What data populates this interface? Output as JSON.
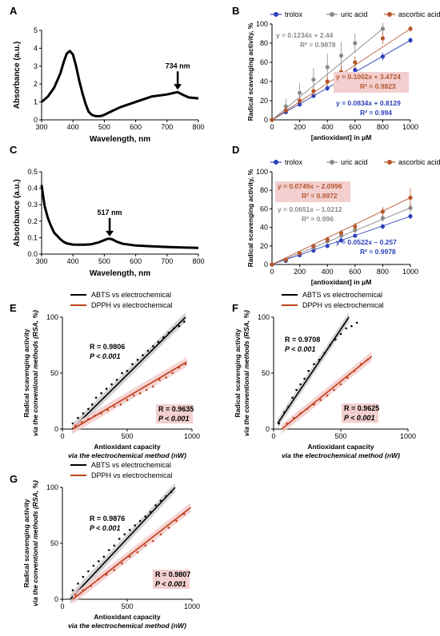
{
  "colors": {
    "trolox": "#2a3fb8",
    "uric_acid": "#8a8a8a",
    "ascorbic_acid": "#b5562d",
    "abts_line": "#000000",
    "dpph_line": "#c2401a",
    "dpph_label_bg": "#f3cfcf"
  },
  "chart_data": [
    {
      "panel": "A",
      "type": "line",
      "xlabel": "Wavelength, nm",
      "ylabel": "Absorbance (a.u.)",
      "xlim": [
        300,
        800
      ],
      "ylim": [
        0,
        5
      ],
      "xticks": [
        "300",
        "400",
        "500",
        "600",
        "700",
        "800"
      ],
      "yticks": [
        "0",
        "1",
        "2",
        "3",
        "4",
        "5"
      ],
      "annotation": "734 nm",
      "annotation_x": 734,
      "x": [
        300,
        320,
        340,
        360,
        370,
        380,
        390,
        400,
        410,
        420,
        430,
        440,
        450,
        460,
        470,
        480,
        490,
        500,
        520,
        550,
        600,
        650,
        700,
        720,
        734,
        750,
        770,
        800
      ],
      "y": [
        1.0,
        1.3,
        1.8,
        2.6,
        3.2,
        3.7,
        3.85,
        3.65,
        3.0,
        2.2,
        1.5,
        0.9,
        0.45,
        0.28,
        0.22,
        0.2,
        0.22,
        0.28,
        0.45,
        0.7,
        1.0,
        1.3,
        1.42,
        1.5,
        1.55,
        1.4,
        1.25,
        1.2
      ]
    },
    {
      "panel": "B",
      "type": "scatter",
      "xlabel": "[antioxidant] in μM",
      "ylabel": "Radical scavenging activity, %",
      "xlim": [
        0,
        1000
      ],
      "ylim": [
        0,
        100
      ],
      "xticks": [
        "0",
        "200",
        "400",
        "600",
        "800",
        "1000"
      ],
      "yticks": [
        "0",
        "20",
        "40",
        "60",
        "80",
        "100"
      ],
      "series": [
        {
          "name": "trolox",
          "color_key": "trolox",
          "x": [
            0,
            100,
            200,
            300,
            400,
            500,
            600,
            800,
            1000
          ],
          "y": [
            0,
            8,
            16,
            25,
            33,
            43,
            52,
            66,
            83
          ],
          "err": [
            1,
            2,
            2,
            2,
            3,
            3,
            3,
            4,
            3
          ],
          "eq": "y = 0.0834x + 0.8129",
          "r2": "R² = 0.994"
        },
        {
          "name": "uric acid",
          "color_key": "uric_acid",
          "x": [
            0,
            100,
            200,
            300,
            400,
            500,
            600,
            800
          ],
          "y": [
            0,
            14,
            28,
            42,
            55,
            67,
            80,
            95
          ],
          "err": [
            1,
            8,
            10,
            12,
            14,
            14,
            10,
            6
          ],
          "eq": "y = 0.1234x + 2.44",
          "r2": "R² = 0.9878"
        },
        {
          "name": "ascorbic acid",
          "color_key": "ascorbic_acid",
          "x": [
            0,
            100,
            200,
            300,
            400,
            500,
            600,
            800,
            1000
          ],
          "y": [
            0,
            10,
            20,
            30,
            40,
            50,
            60,
            85,
            95
          ],
          "err": [
            1,
            3,
            4,
            5,
            5,
            6,
            6,
            6,
            3
          ],
          "eq": "y = 0.1002x + 3.4724",
          "r2": "R² = 0.9823"
        }
      ]
    },
    {
      "panel": "C",
      "type": "line",
      "xlabel": "Wavelength, nm",
      "ylabel": "Absorbance (a.u.)",
      "xlim": [
        300,
        800
      ],
      "ylim": [
        0,
        0.5
      ],
      "xticks": [
        "300",
        "400",
        "500",
        "600",
        "700",
        "800"
      ],
      "yticks": [
        "0.0",
        "0.1",
        "0.2",
        "0.3",
        "0.4",
        "0.5"
      ],
      "annotation": "517 nm",
      "annotation_x": 517,
      "x": [
        300,
        305,
        310,
        320,
        330,
        340,
        350,
        360,
        370,
        380,
        400,
        420,
        440,
        460,
        480,
        500,
        510,
        517,
        525,
        540,
        560,
        600,
        650,
        700,
        750,
        800
      ],
      "y": [
        0.42,
        0.35,
        0.29,
        0.22,
        0.17,
        0.13,
        0.11,
        0.09,
        0.075,
        0.065,
        0.058,
        0.057,
        0.057,
        0.06,
        0.07,
        0.085,
        0.092,
        0.093,
        0.09,
        0.075,
        0.062,
        0.052,
        0.047,
        0.043,
        0.04,
        0.038
      ]
    },
    {
      "panel": "D",
      "type": "scatter",
      "xlabel": "[antioxidant] in μM",
      "ylabel": "Radical scavenging activity, %",
      "xlim": [
        0,
        1000
      ],
      "ylim": [
        0,
        100
      ],
      "xticks": [
        "0",
        "200",
        "400",
        "600",
        "800",
        "1000"
      ],
      "yticks": [
        "0",
        "20",
        "40",
        "60",
        "80",
        "100"
      ],
      "series": [
        {
          "name": "trolox",
          "color_key": "trolox",
          "x": [
            0,
            100,
            200,
            300,
            400,
            500,
            600,
            800,
            1000
          ],
          "y": [
            0,
            4,
            10,
            15,
            20,
            26,
            31,
            41,
            52
          ],
          "err": [
            1,
            1,
            1,
            2,
            2,
            2,
            2,
            3,
            3
          ],
          "eq": "y = 0.0522x – 0.257",
          "r2": "R² = 0.9978"
        },
        {
          "name": "uric acid",
          "color_key": "uric_acid",
          "x": [
            0,
            100,
            200,
            300,
            400,
            500,
            600,
            800,
            1000
          ],
          "y": [
            0,
            5,
            12,
            18,
            25,
            31,
            37,
            50,
            61
          ],
          "err": [
            1,
            1,
            2,
            2,
            2,
            3,
            3,
            4,
            5
          ],
          "eq": "y = 0.0651x – 1.0212",
          "r2": "R² = 0.996"
        },
        {
          "name": "ascorbic acid",
          "color_key": "ascorbic_acid",
          "x": [
            0,
            100,
            200,
            300,
            400,
            500,
            600,
            800,
            1000
          ],
          "y": [
            0,
            5,
            12,
            20,
            27,
            34,
            41,
            57,
            72
          ],
          "err": [
            1,
            1,
            2,
            2,
            3,
            3,
            4,
            5,
            10
          ],
          "eq": "y = 0.0749x – 2.0996",
          "r2": "R² = 0.9972"
        }
      ]
    },
    {
      "panel": "E",
      "type": "scatter",
      "xlabel": "Antioxidant capacity",
      "xlabel2": "via the electrochemical method (nW)",
      "ylabel": "Radical scavenging activity",
      "ylabel2": "via the conventional methods (RSA, %)",
      "xlim": [
        0,
        1000
      ],
      "ylim": [
        0,
        100
      ],
      "xticks": [
        "0",
        "500",
        "1000"
      ],
      "yticks": [
        "0",
        "50",
        "100"
      ],
      "series": [
        {
          "name": "ABTS vs electrochemical",
          "color_key": "abts_line",
          "x": [
            80,
            120,
            160,
            200,
            230,
            260,
            300,
            340,
            380,
            420,
            460,
            500,
            540,
            580,
            620,
            660,
            700,
            740,
            780,
            820,
            860,
            900,
            940
          ],
          "y": [
            5,
            10,
            14,
            18,
            22,
            28,
            32,
            36,
            40,
            44,
            50,
            52,
            58,
            62,
            66,
            70,
            74,
            78,
            82,
            86,
            90,
            92,
            96
          ],
          "fit": [
            [
              75,
              0
            ],
            [
              950,
              100
            ]
          ],
          "stat1": "R = 0.9806",
          "stat2": "P < 0.001"
        },
        {
          "name": "DPPH vs electrochemical",
          "color_key": "dpph_line",
          "x": [
            100,
            150,
            200,
            250,
            300,
            350,
            400,
            450,
            500,
            550,
            600,
            650,
            700,
            750,
            800,
            850,
            900,
            950
          ],
          "y": [
            3,
            6,
            9,
            12,
            14,
            17,
            20,
            22,
            26,
            30,
            32,
            35,
            38,
            44,
            46,
            50,
            55,
            58
          ],
          "fit": [
            [
              80,
              0
            ],
            [
              960,
              60
            ]
          ],
          "stat1": "R = 0.9635",
          "stat2": "P < 0.001"
        }
      ]
    },
    {
      "panel": "F",
      "type": "scatter",
      "xlabel": "Antioxidant capacity",
      "xlabel2": "via the electrochemical method (nW)",
      "ylabel": "Radical scavenging activity",
      "ylabel2": "via the conventional methods (RSA, %)",
      "xlim": [
        0,
        1000
      ],
      "ylim": [
        0,
        100
      ],
      "xticks": [
        "0",
        "500",
        "1000"
      ],
      "yticks": [
        "0",
        "50",
        "100"
      ],
      "series": [
        {
          "name": "ABTS vs electrochemical",
          "color_key": "abts_line",
          "x": [
            40,
            80,
            110,
            140,
            170,
            200,
            230,
            260,
            300,
            340,
            380,
            420,
            460,
            500,
            540,
            580,
            620
          ],
          "y": [
            5,
            15,
            20,
            28,
            35,
            40,
            45,
            52,
            58,
            62,
            68,
            75,
            80,
            85,
            90,
            92,
            95
          ],
          "fit": [
            [
              30,
              5
            ],
            [
              560,
              100
            ]
          ],
          "stat1": "R = 0.9708",
          "stat2": "P < 0.001"
        },
        {
          "name": "DPPH vs electrochemical",
          "color_key": "dpph_line",
          "x": [
            100,
            150,
            200,
            250,
            300,
            350,
            400,
            450,
            500,
            550,
            600,
            650,
            700
          ],
          "y": [
            5,
            10,
            14,
            18,
            22,
            26,
            30,
            35,
            40,
            46,
            52,
            58,
            62
          ],
          "fit": [
            [
              60,
              0
            ],
            [
              730,
              65
            ]
          ],
          "stat1": "R = 0.9625",
          "stat2": "P < 0.001"
        }
      ]
    },
    {
      "panel": "G",
      "type": "scatter",
      "xlabel": "Antioxidant capacity",
      "xlabel2": "via the electrochemical method (nW)",
      "ylabel": "Radical scavenging activity",
      "ylabel2": "via the conventional methods (RSA, %)",
      "xlim": [
        0,
        1000
      ],
      "ylim": [
        0,
        100
      ],
      "xticks": [
        "0",
        "500",
        "1000"
      ],
      "yticks": [
        "0",
        "50",
        "100"
      ],
      "series": [
        {
          "name": "ABTS vs electrochemical",
          "color_key": "abts_line",
          "x": [
            80,
            120,
            160,
            200,
            240,
            280,
            320,
            360,
            400,
            440,
            480,
            520,
            560,
            600,
            640,
            680,
            720,
            760,
            800,
            840
          ],
          "y": [
            8,
            14,
            20,
            25,
            30,
            34,
            38,
            44,
            48,
            54,
            58,
            62,
            66,
            70,
            74,
            78,
            84,
            88,
            92,
            96
          ],
          "fit": [
            [
              60,
              0
            ],
            [
              870,
              100
            ]
          ],
          "stat1": "R = 0.9876",
          "stat2": "P < 0.001"
        },
        {
          "name": "DPPH vs electrochemical",
          "color_key": "dpph_line",
          "x": [
            100,
            160,
            220,
            280,
            340,
            400,
            460,
            520,
            580,
            640,
            700,
            760,
            820,
            880,
            940
          ],
          "y": [
            4,
            8,
            12,
            18,
            22,
            26,
            32,
            38,
            42,
            48,
            52,
            58,
            64,
            70,
            76
          ],
          "fit": [
            [
              80,
              0
            ],
            [
              990,
              82
            ]
          ],
          "stat1": "R = 0.9807",
          "stat2": "P < 0.001"
        }
      ]
    }
  ]
}
